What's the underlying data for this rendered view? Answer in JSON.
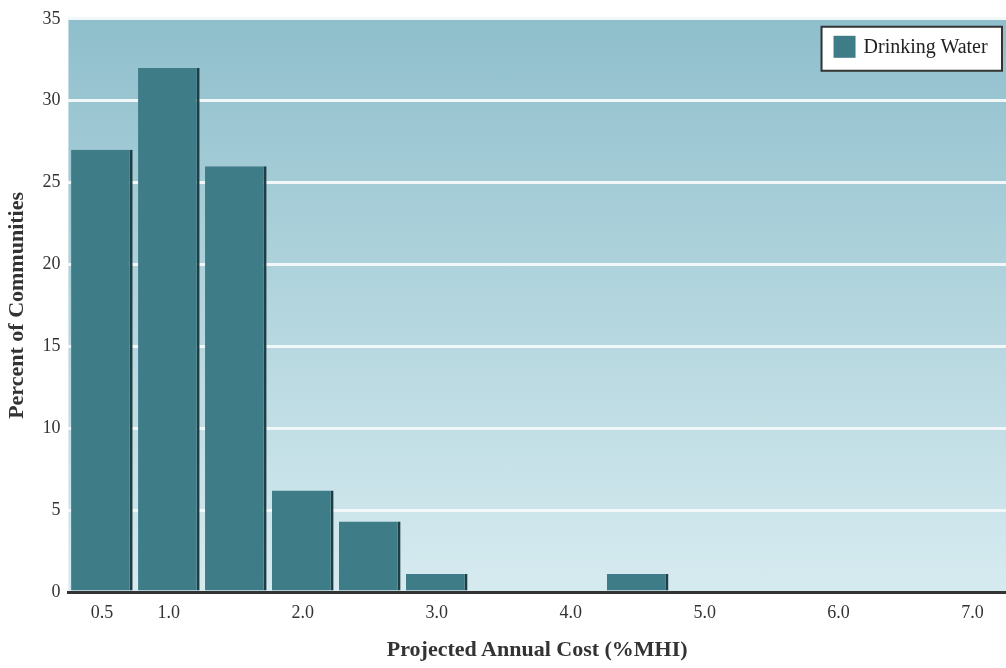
{
  "chart_data": {
    "type": "bar",
    "xlabel": "Projected Annual Cost (%MHI)",
    "ylabel": "Percent of Communities",
    "categories": [
      "0.5",
      "1.0",
      null,
      "2.0",
      null,
      "3.0",
      null,
      "4.0",
      null,
      "5.0",
      null,
      "6.0",
      null,
      "7.0"
    ],
    "series": [
      {
        "name": "Drinking Water",
        "color": "#3e7c88",
        "values": [
          27,
          32,
          26,
          6.2,
          4.3,
          1.1,
          0,
          0,
          1.1,
          0,
          0,
          0,
          0,
          0
        ]
      }
    ],
    "ylim": [
      0,
      35
    ],
    "yticks": [
      0,
      5,
      10,
      15,
      20,
      25,
      30,
      35
    ],
    "grid": "y",
    "legend": "top right"
  }
}
